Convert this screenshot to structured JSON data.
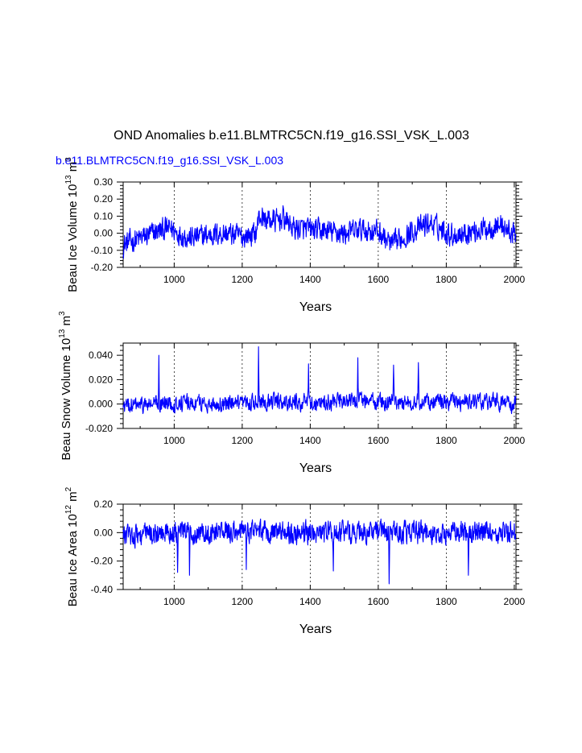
{
  "figure": {
    "title": "OND Anomalies b.e11.BLMTRC5CN.f19_g16.SSI_VSK_L.003",
    "legend_label": "b.e11.BLMTRC5CN.f19_g16.SSI_VSK_L.003",
    "legend_color": "#0000ff",
    "line_color": "#0000ff",
    "grid_lines": "dashed vertical at 1000, 1200, 1400, 1600, 1800, 2000"
  },
  "chart_data": [
    {
      "type": "line",
      "id": "ice-volume",
      "ylabel": "Beau Ice Volume 10",
      "ylabel_exp1": "13",
      "ylabel_unit": " m",
      "ylabel_exp2": "3",
      "xlabel": "Years",
      "xlim": [
        850,
        2005
      ],
      "ylim": [
        -0.2,
        0.3
      ],
      "xticks": [
        1000,
        1200,
        1400,
        1600,
        1800,
        2000
      ],
      "xtick_labels": [
        "1000",
        "1200",
        "1400",
        "1600",
        "1800",
        "2000"
      ],
      "yticks": [
        -0.2,
        -0.1,
        0.0,
        0.1,
        0.2,
        0.3
      ],
      "ytick_labels": [
        "-0.20",
        "-0.10",
        "0.00",
        "0.10",
        "0.20",
        "0.30"
      ],
      "series": [
        {
          "name": "b.e11.BLMTRC5CN.f19_g16.SSI_VSK_L.003",
          "anchor_x": [
            850,
            870,
            900,
            950,
            990,
            1010,
            1050,
            1100,
            1150,
            1200,
            1240,
            1250,
            1270,
            1300,
            1320,
            1350,
            1400,
            1450,
            1500,
            1550,
            1600,
            1640,
            1700,
            1750,
            1780,
            1820,
            1900,
            1960,
            2005
          ],
          "anchor_y": [
            -0.07,
            -0.05,
            -0.03,
            0.01,
            0.03,
            0.0,
            -0.03,
            -0.01,
            0.0,
            -0.02,
            0.0,
            0.1,
            0.08,
            0.07,
            0.09,
            0.03,
            0.02,
            0.01,
            0.0,
            0.02,
            0.01,
            -0.07,
            0.01,
            0.06,
            0.03,
            -0.01,
            0.02,
            0.05,
            -0.02
          ],
          "noise_amplitude": 0.06,
          "range": [
            -0.18,
            0.22
          ]
        }
      ]
    },
    {
      "type": "line",
      "id": "snow-volume",
      "ylabel": "Beau Snow Volume 10",
      "ylabel_exp1": "13",
      "ylabel_unit": " m",
      "ylabel_exp2": "3",
      "xlabel": "Years",
      "xlim": [
        850,
        2005
      ],
      "ylim": [
        -0.02,
        0.05
      ],
      "xticks": [
        1000,
        1200,
        1400,
        1600,
        1800,
        2000
      ],
      "xtick_labels": [
        "1000",
        "1200",
        "1400",
        "1600",
        "1800",
        "2000"
      ],
      "yticks": [
        -0.02,
        0.0,
        0.02,
        0.04
      ],
      "ytick_labels": [
        "-0.020",
        "0.000",
        "0.020",
        "0.040"
      ],
      "series": [
        {
          "name": "b.e11.BLMTRC5CN.f19_g16.SSI_VSK_L.003",
          "anchor_x": [
            850,
            950,
            1050,
            1200,
            1250,
            1300,
            1400,
            1500,
            1550,
            1650,
            1750,
            1850,
            1950,
            2005
          ],
          "anchor_y": [
            -0.002,
            0.0,
            0.001,
            -0.001,
            0.003,
            0.002,
            0.001,
            0.002,
            0.003,
            0.001,
            0.002,
            0.001,
            0.002,
            -0.001
          ],
          "noise_amplitude": 0.006,
          "spikes": [
            [
              955,
              0.04
            ],
            [
              1248,
              0.047
            ],
            [
              1395,
              0.033
            ],
            [
              1540,
              0.038
            ],
            [
              1645,
              0.032
            ],
            [
              1718,
              0.034
            ]
          ],
          "range": [
            -0.016,
            0.047
          ]
        }
      ]
    },
    {
      "type": "line",
      "id": "ice-area",
      "ylabel": "Beau Ice Area 10",
      "ylabel_exp1": "12",
      "ylabel_unit": " m",
      "ylabel_exp2": "2",
      "xlabel": "Years",
      "xlim": [
        850,
        2005
      ],
      "ylim": [
        -0.4,
        0.2
      ],
      "xticks": [
        1000,
        1200,
        1400,
        1600,
        1800,
        2000
      ],
      "xtick_labels": [
        "1000",
        "1200",
        "1400",
        "1600",
        "1800",
        "2000"
      ],
      "yticks": [
        -0.4,
        -0.2,
        0.0,
        0.2
      ],
      "ytick_labels": [
        "-0.40",
        "-0.20",
        "0.00",
        "0.20"
      ],
      "series": [
        {
          "name": "b.e11.BLMTRC5CN.f19_g16.SSI_VSK_L.003",
          "anchor_x": [
            850,
            1000,
            1200,
            1400,
            1600,
            1800,
            2005
          ],
          "anchor_y": [
            -0.02,
            0.0,
            0.01,
            0.0,
            0.0,
            0.0,
            0.0
          ],
          "noise_amplitude": 0.07,
          "spikes": [
            [
              1010,
              -0.28
            ],
            [
              1045,
              -0.3
            ],
            [
              1212,
              -0.26
            ],
            [
              1468,
              -0.27
            ],
            [
              1632,
              -0.36
            ],
            [
              1865,
              -0.3
            ]
          ],
          "range": [
            -0.36,
            0.15
          ]
        }
      ]
    }
  ]
}
